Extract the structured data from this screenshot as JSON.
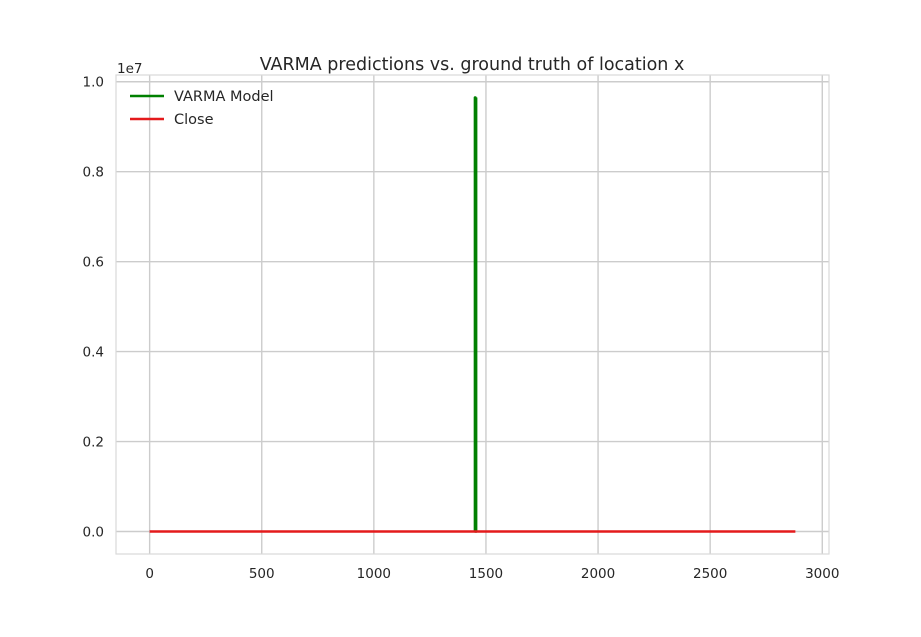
{
  "chart_data": {
    "type": "line",
    "title": "VARMA predictions vs. ground truth of location x",
    "xlabel": "",
    "ylabel": "",
    "y_offset_label": "1e7",
    "xlim": [
      -150,
      3030
    ],
    "ylim": [
      -0.05,
      1.015
    ],
    "x_ticks": [
      0,
      500,
      1000,
      1500,
      2000,
      2500,
      3000
    ],
    "x_tick_labels": [
      "0",
      "500",
      "1000",
      "1500",
      "2000",
      "2500",
      "3000"
    ],
    "y_ticks": [
      0.0,
      0.2,
      0.4,
      0.6,
      0.8,
      1.0
    ],
    "y_tick_labels": [
      "0.0",
      "0.2",
      "0.4",
      "0.6",
      "0.8",
      "1.0"
    ],
    "grid": true,
    "legend_position": "top-left",
    "series": [
      {
        "name": "VARMA Model",
        "color": "#008000",
        "x": [
          1451,
          1451,
          1453,
          1453,
          1456,
          1456
        ],
        "y": [
          0.0,
          0.965,
          0.965,
          0.0,
          0.0,
          0.965
        ]
      },
      {
        "name": "Close",
        "color": "#e41a1c",
        "x": [
          0,
          2880
        ],
        "y": [
          0.0,
          0.0
        ]
      }
    ]
  }
}
